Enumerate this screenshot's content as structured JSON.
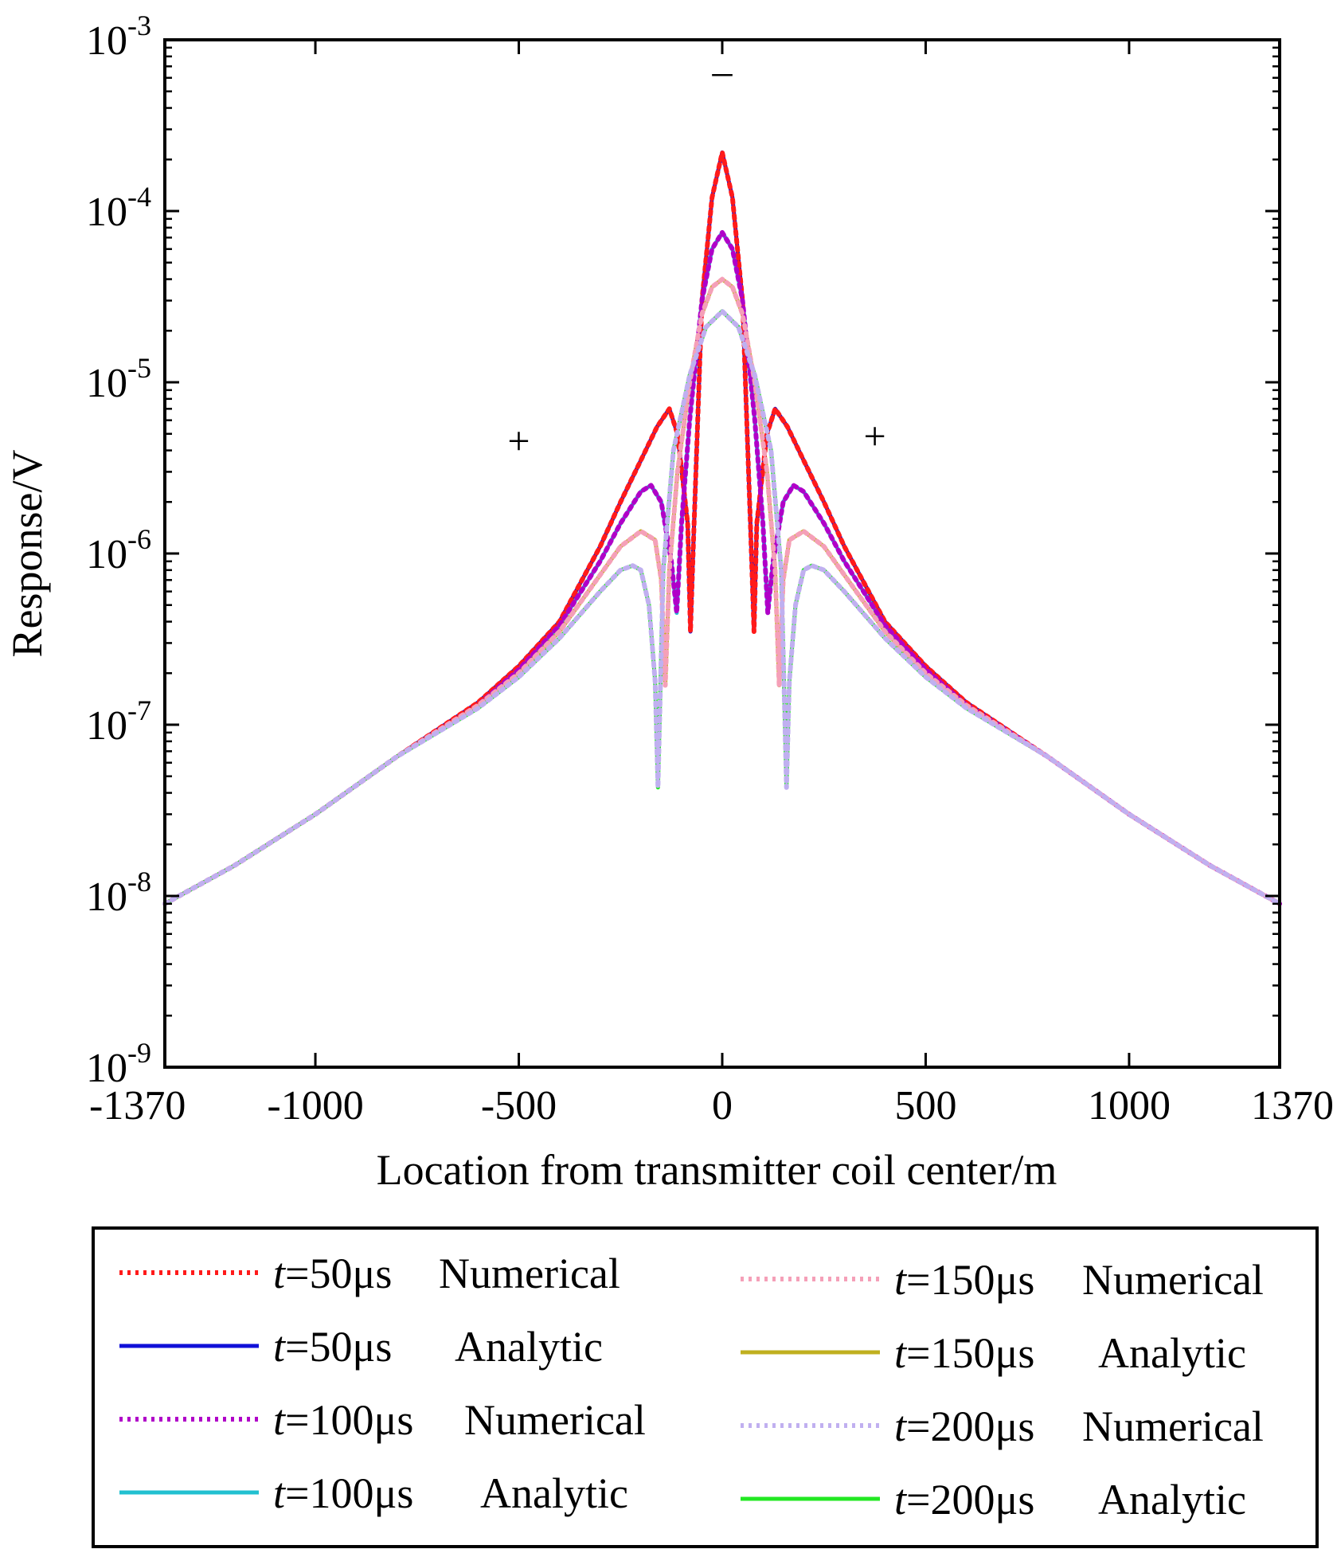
{
  "chart_data": {
    "type": "line",
    "yscale": "log",
    "xlabel": "Location from transmitter coil center/m",
    "ylabel": "Response/V",
    "xlim": [
      -1370,
      1370
    ],
    "ylim": [
      1e-09,
      0.001
    ],
    "x_ticks": [
      {
        "value": -1370,
        "label": "-1370"
      },
      {
        "value": -1000,
        "label": "-1000"
      },
      {
        "value": -500,
        "label": "-500"
      },
      {
        "value": 0,
        "label": "0"
      },
      {
        "value": 500,
        "label": "500"
      },
      {
        "value": 1000,
        "label": "1000"
      },
      {
        "value": 1370,
        "label": "1370"
      }
    ],
    "y_ticks": [
      {
        "exp": -9,
        "base": "10",
        "sup": "-9"
      },
      {
        "exp": -8,
        "base": "10",
        "sup": "-8"
      },
      {
        "exp": -7,
        "base": "10",
        "sup": "-7"
      },
      {
        "exp": -6,
        "base": "10",
        "sup": "-6"
      },
      {
        "exp": -5,
        "base": "10",
        "sup": "-5"
      },
      {
        "exp": -4,
        "base": "10",
        "sup": "-4"
      },
      {
        "exp": -3,
        "base": "10",
        "sup": "-3"
      }
    ],
    "annotations": [
      {
        "text": "+",
        "x": -500,
        "y": 4.5e-06
      },
      {
        "text": "–",
        "x": 0,
        "y": 0.00065
      },
      {
        "text": "+",
        "x": 375,
        "y": 4.8e-06
      }
    ],
    "series": [
      {
        "name": "t=50μs Numerical",
        "time_us": "50",
        "method": "Numerical",
        "color": "#ff1a1a",
        "style": "dotted",
        "x": [
          -1370,
          -1200,
          -1000,
          -800,
          -600,
          -500,
          -400,
          -300,
          -250,
          -200,
          -160,
          -130,
          -110,
          -85,
          -78,
          -70,
          -50,
          -25,
          0,
          25,
          50,
          70,
          78,
          85,
          110,
          130,
          160,
          200,
          250,
          300,
          400,
          500,
          600,
          800,
          1000,
          1200,
          1370
        ],
        "y": [
          9e-09,
          1.5e-08,
          3e-08,
          6.5e-08,
          1.35e-07,
          2.2e-07,
          4e-07,
          1.1e-06,
          2e-06,
          3.5e-06,
          5.5e-06,
          7e-06,
          5e-06,
          1.5e-06,
          3.5e-07,
          1.3e-06,
          3e-05,
          0.00012,
          0.00022,
          0.00012,
          3e-05,
          1.3e-06,
          3.5e-07,
          1.5e-06,
          5e-06,
          7e-06,
          5.5e-06,
          3.5e-06,
          2e-06,
          1.1e-06,
          4e-07,
          2.2e-07,
          1.35e-07,
          6.5e-08,
          3e-08,
          1.5e-08,
          9e-09
        ]
      },
      {
        "name": "t=50μs Analytic",
        "time_us": "50",
        "method": "Analytic",
        "color": "#1010d8",
        "style": "solid",
        "x": [
          -1370,
          -1200,
          -1000,
          -800,
          -600,
          -500,
          -400,
          -300,
          -250,
          -200,
          -160,
          -130,
          -110,
          -85,
          -78,
          -70,
          -50,
          -25,
          0,
          25,
          50,
          70,
          78,
          85,
          110,
          130,
          160,
          200,
          250,
          300,
          400,
          500,
          600,
          800,
          1000,
          1200,
          1370
        ],
        "y": [
          9e-09,
          1.5e-08,
          3e-08,
          6.5e-08,
          1.35e-07,
          2.2e-07,
          4e-07,
          1.1e-06,
          2e-06,
          3.5e-06,
          5.5e-06,
          7e-06,
          5e-06,
          1.5e-06,
          3.5e-07,
          1.3e-06,
          3e-05,
          0.00012,
          0.00022,
          0.00012,
          3e-05,
          1.3e-06,
          3.5e-07,
          1.5e-06,
          5e-06,
          7e-06,
          5.5e-06,
          3.5e-06,
          2e-06,
          1.1e-06,
          4e-07,
          2.2e-07,
          1.35e-07,
          6.5e-08,
          3e-08,
          1.5e-08,
          9e-09
        ]
      },
      {
        "name": "t=100μs Numerical",
        "time_us": "100",
        "method": "Numerical",
        "color": "#b000c8",
        "style": "dotted",
        "x": [
          -1370,
          -1200,
          -1000,
          -800,
          -600,
          -500,
          -400,
          -300,
          -250,
          -200,
          -175,
          -150,
          -125,
          -112,
          -100,
          -80,
          -50,
          -25,
          0,
          25,
          50,
          80,
          100,
          112,
          125,
          150,
          175,
          200,
          250,
          300,
          400,
          500,
          600,
          800,
          1000,
          1200,
          1370
        ],
        "y": [
          9e-09,
          1.5e-08,
          3e-08,
          6.5e-08,
          1.3e-07,
          2.1e-07,
          3.8e-07,
          9e-07,
          1.5e-06,
          2.3e-06,
          2.5e-06,
          2e-06,
          9e-07,
          4.5e-07,
          1.5e-06,
          6e-06,
          3e-05,
          6e-05,
          7.5e-05,
          6e-05,
          3e-05,
          6e-06,
          1.5e-06,
          4.5e-07,
          9e-07,
          2e-06,
          2.5e-06,
          2.3e-06,
          1.5e-06,
          9e-07,
          3.8e-07,
          2.1e-07,
          1.3e-07,
          6.5e-08,
          3e-08,
          1.5e-08,
          9e-09
        ]
      },
      {
        "name": "t=100μs Analytic",
        "time_us": "100",
        "method": "Analytic",
        "color": "#22c0d0",
        "style": "solid",
        "x": [
          -1370,
          -1200,
          -1000,
          -800,
          -600,
          -500,
          -400,
          -300,
          -250,
          -200,
          -175,
          -150,
          -125,
          -112,
          -100,
          -80,
          -50,
          -25,
          0,
          25,
          50,
          80,
          100,
          112,
          125,
          150,
          175,
          200,
          250,
          300,
          400,
          500,
          600,
          800,
          1000,
          1200,
          1370
        ],
        "y": [
          9e-09,
          1.5e-08,
          3e-08,
          6.5e-08,
          1.3e-07,
          2.1e-07,
          3.8e-07,
          9e-07,
          1.5e-06,
          2.3e-06,
          2.5e-06,
          2e-06,
          9e-07,
          4.5e-07,
          1.5e-06,
          6e-06,
          3e-05,
          6e-05,
          7.5e-05,
          6e-05,
          3e-05,
          6e-06,
          1.5e-06,
          4.5e-07,
          9e-07,
          2e-06,
          2.5e-06,
          2.3e-06,
          1.5e-06,
          9e-07,
          3.8e-07,
          2.1e-07,
          1.3e-07,
          6.5e-08,
          3e-08,
          1.5e-08,
          9e-09
        ]
      },
      {
        "name": "t=150μs Numerical",
        "time_us": "150",
        "method": "Numerical",
        "color": "#f5a0b8",
        "style": "dotted",
        "x": [
          -1370,
          -1200,
          -1000,
          -800,
          -600,
          -500,
          -400,
          -300,
          -250,
          -200,
          -165,
          -150,
          -140,
          -130,
          -110,
          -80,
          -50,
          -25,
          0,
          25,
          50,
          80,
          110,
          130,
          140,
          150,
          165,
          200,
          250,
          300,
          400,
          500,
          600,
          800,
          1000,
          1200,
          1370
        ],
        "y": [
          9e-09,
          1.5e-08,
          3e-08,
          6.5e-08,
          1.3e-07,
          2e-07,
          3.5e-07,
          7.5e-07,
          1.1e-06,
          1.35e-06,
          1.2e-06,
          7e-07,
          1.7e-07,
          8e-07,
          3e-06,
          1e-05,
          2.5e-05,
          3.6e-05,
          4e-05,
          3.6e-05,
          2.5e-05,
          1e-05,
          3e-06,
          8e-07,
          1.7e-07,
          7e-07,
          1.2e-06,
          1.35e-06,
          1.1e-06,
          7.5e-07,
          3.5e-07,
          2e-07,
          1.3e-07,
          6.5e-08,
          3e-08,
          1.5e-08,
          9e-09
        ]
      },
      {
        "name": "t=150μs Analytic",
        "time_us": "150",
        "method": "Analytic",
        "color": "#c0b020",
        "style": "solid",
        "x": [
          -1370,
          -1200,
          -1000,
          -800,
          -600,
          -500,
          -400,
          -300,
          -250,
          -200,
          -165,
          -150,
          -140,
          -130,
          -110,
          -80,
          -50,
          -25,
          0,
          25,
          50,
          80,
          110,
          130,
          140,
          150,
          165,
          200,
          250,
          300,
          400,
          500,
          600,
          800,
          1000,
          1200,
          1370
        ],
        "y": [
          9e-09,
          1.5e-08,
          3e-08,
          6.5e-08,
          1.3e-07,
          2e-07,
          3.5e-07,
          7.5e-07,
          1.1e-06,
          1.35e-06,
          1.2e-06,
          7e-07,
          1.7e-07,
          8e-07,
          3e-06,
          1e-05,
          2.5e-05,
          3.6e-05,
          4e-05,
          3.6e-05,
          2.5e-05,
          1e-05,
          3e-06,
          8e-07,
          1.7e-07,
          7e-07,
          1.2e-06,
          1.35e-06,
          1.1e-06,
          7.5e-07,
          3.5e-07,
          2e-07,
          1.3e-07,
          6.5e-08,
          3e-08,
          1.5e-08,
          9e-09
        ]
      },
      {
        "name": "t=200μs Numerical",
        "time_us": "200",
        "method": "Numerical",
        "color": "#c0b0f0",
        "style": "dotted",
        "x": [
          -1370,
          -1200,
          -1000,
          -800,
          -600,
          -500,
          -400,
          -300,
          -250,
          -220,
          -200,
          -180,
          -165,
          -158,
          -145,
          -120,
          -80,
          -40,
          0,
          40,
          80,
          120,
          145,
          158,
          165,
          180,
          200,
          220,
          250,
          300,
          400,
          500,
          600,
          800,
          1000,
          1200,
          1370
        ],
        "y": [
          9e-09,
          1.5e-08,
          3e-08,
          6.5e-08,
          1.25e-07,
          1.9e-07,
          3.2e-07,
          6e-07,
          8e-07,
          8.5e-07,
          8e-07,
          5e-07,
          1.8e-07,
          4.3e-08,
          8e-07,
          4e-06,
          1.1e-05,
          2.1e-05,
          2.6e-05,
          2.1e-05,
          1.1e-05,
          4e-06,
          8e-07,
          4.3e-08,
          1.8e-07,
          5e-07,
          8e-07,
          8.5e-07,
          8e-07,
          6e-07,
          3.2e-07,
          1.9e-07,
          1.25e-07,
          6.5e-08,
          3e-08,
          1.5e-08,
          9e-09
        ]
      },
      {
        "name": "t=200μs Analytic",
        "time_us": "200",
        "method": "Analytic",
        "color": "#22e822",
        "style": "solid",
        "x": [
          -1370,
          -1200,
          -1000,
          -800,
          -600,
          -500,
          -400,
          -300,
          -250,
          -220,
          -200,
          -180,
          -165,
          -158,
          -145,
          -120,
          -80,
          -40,
          0,
          40,
          80,
          120,
          145,
          158,
          165,
          180,
          200,
          220,
          250,
          300,
          400,
          500,
          600,
          800,
          1000,
          1200,
          1370
        ],
        "y": [
          9e-09,
          1.5e-08,
          3e-08,
          6.5e-08,
          1.25e-07,
          1.9e-07,
          3.2e-07,
          6e-07,
          8e-07,
          8.5e-07,
          8e-07,
          5e-07,
          1.8e-07,
          4.3e-08,
          8e-07,
          4e-06,
          1.1e-05,
          2.1e-05,
          2.6e-05,
          2.1e-05,
          1.1e-05,
          4e-06,
          8e-07,
          4.3e-08,
          1.8e-07,
          5e-07,
          8e-07,
          8.5e-07,
          8e-07,
          6e-07,
          3.2e-07,
          1.9e-07,
          1.25e-07,
          6.5e-08,
          3e-08,
          1.5e-08,
          9e-09
        ]
      }
    ],
    "legend": {
      "placement": "bottom",
      "entries": [
        {
          "series": 0,
          "t_label": "t",
          "eq": "=50μs",
          "method": "Numerical"
        },
        {
          "series": 1,
          "t_label": "t",
          "eq": "=50μs",
          "method": "Analytic"
        },
        {
          "series": 2,
          "t_label": "t",
          "eq": "=100μs",
          "method": "Numerical"
        },
        {
          "series": 3,
          "t_label": "t",
          "eq": "=100μs",
          "method": "Analytic"
        },
        {
          "series": 4,
          "t_label": "t",
          "eq": "=150μs",
          "method": "Numerical"
        },
        {
          "series": 5,
          "t_label": "t",
          "eq": "=150μs",
          "method": "Analytic"
        },
        {
          "series": 6,
          "t_label": "t",
          "eq": "=200μs",
          "method": "Numerical"
        },
        {
          "series": 7,
          "t_label": "t",
          "eq": "=200μs",
          "method": "Analytic"
        }
      ]
    }
  }
}
